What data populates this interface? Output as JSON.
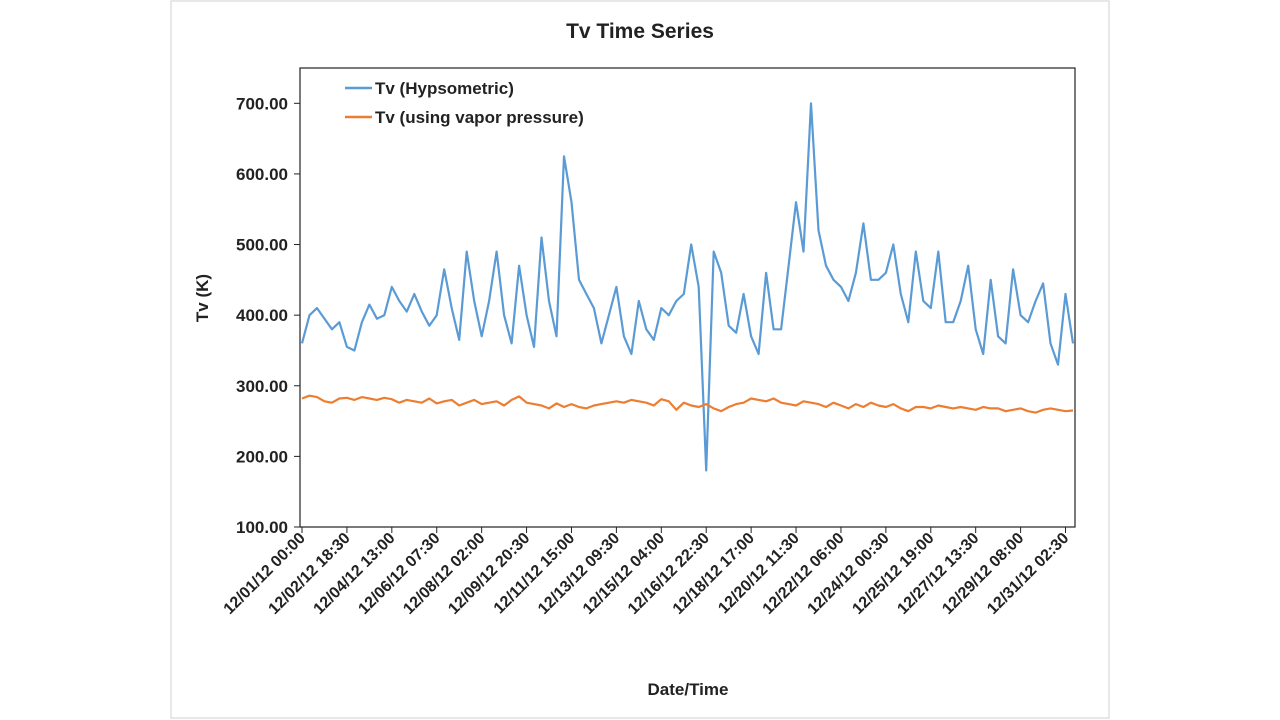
{
  "chart_data": {
    "type": "line",
    "title": "Tv Time Series",
    "x_label": "Date/Time",
    "y_label": "Tv (K)",
    "categories": [
      "12/01/12 00:00",
      null,
      null,
      null,
      null,
      null,
      "12/02/12 18:30",
      null,
      null,
      null,
      null,
      null,
      "12/04/12 13:00",
      null,
      null,
      null,
      null,
      null,
      "12/06/12 07:30",
      null,
      null,
      null,
      null,
      null,
      "12/08/12 02:00",
      null,
      null,
      null,
      null,
      null,
      "12/09/12 20:30",
      null,
      null,
      null,
      null,
      null,
      "12/11/12 15:00",
      null,
      null,
      null,
      null,
      null,
      "12/13/12 09:30",
      null,
      null,
      null,
      null,
      null,
      "12/15/12 04:00",
      null,
      null,
      null,
      null,
      null,
      "12/16/12 22:30",
      null,
      null,
      null,
      null,
      null,
      "12/18/12 17:00",
      null,
      null,
      null,
      null,
      null,
      "12/20/12 11:30",
      null,
      null,
      null,
      null,
      null,
      "12/22/12 06:00",
      null,
      null,
      null,
      null,
      null,
      "12/24/12 00:30",
      null,
      null,
      null,
      null,
      null,
      "12/25/12 19:00",
      null,
      null,
      null,
      null,
      null,
      "12/27/12 13:30",
      null,
      null,
      null,
      null,
      null,
      "12/29/12 08:00",
      null,
      null,
      null,
      null,
      null,
      "12/31/12 02:30",
      null
    ],
    "series": [
      {
        "name": "Tv (Hypsometric)",
        "color": "#5b9bd5",
        "values": [
          360,
          400,
          410,
          395,
          380,
          390,
          355,
          350,
          390,
          415,
          395,
          400,
          440,
          420,
          405,
          430,
          405,
          385,
          400,
          465,
          410,
          365,
          490,
          420,
          370,
          420,
          490,
          400,
          360,
          470,
          400,
          355,
          510,
          420,
          370,
          625,
          560,
          450,
          430,
          410,
          360,
          400,
          440,
          370,
          345,
          420,
          380,
          365,
          410,
          400,
          420,
          430,
          500,
          440,
          180,
          490,
          460,
          385,
          375,
          430,
          370,
          345,
          460,
          380,
          380,
          470,
          560,
          490,
          700,
          520,
          470,
          450,
          440,
          420,
          460,
          530,
          450,
          450,
          460,
          500,
          430,
          390,
          490,
          420,
          410,
          490,
          390,
          390,
          420,
          470,
          380,
          345,
          450,
          370,
          360,
          465,
          400,
          390,
          420,
          445,
          360,
          330,
          430,
          360
        ]
      },
      {
        "name": "Tv (using vapor pressure)",
        "color": "#ed7d31",
        "values": [
          282,
          286,
          284,
          278,
          276,
          282,
          283,
          280,
          284,
          282,
          280,
          283,
          281,
          276,
          280,
          278,
          276,
          282,
          275,
          278,
          280,
          272,
          276,
          280,
          274,
          276,
          278,
          272,
          280,
          285,
          276,
          274,
          272,
          268,
          275,
          270,
          274,
          270,
          268,
          272,
          274,
          276,
          278,
          276,
          280,
          278,
          276,
          272,
          281,
          278,
          266,
          276,
          272,
          270,
          274,
          268,
          264,
          270,
          274,
          276,
          282,
          280,
          278,
          282,
          276,
          274,
          272,
          278,
          276,
          274,
          270,
          276,
          272,
          268,
          274,
          270,
          276,
          272,
          270,
          274,
          268,
          264,
          270,
          270,
          268,
          272,
          270,
          268,
          270,
          268,
          266,
          270,
          268,
          268,
          264,
          266,
          268,
          264,
          262,
          266,
          268,
          266,
          264,
          265
        ]
      }
    ],
    "ylim": [
      100,
      750
    ],
    "yticks": [
      {
        "value": 100,
        "label": "100.00"
      },
      {
        "value": 200,
        "label": "200.00"
      },
      {
        "value": 300,
        "label": "300.00"
      },
      {
        "value": 400,
        "label": "400.00"
      },
      {
        "value": 500,
        "label": "500.00"
      },
      {
        "value": 600,
        "label": "600.00"
      },
      {
        "value": 700,
        "label": "700.00"
      }
    ],
    "legend": "upper left"
  }
}
